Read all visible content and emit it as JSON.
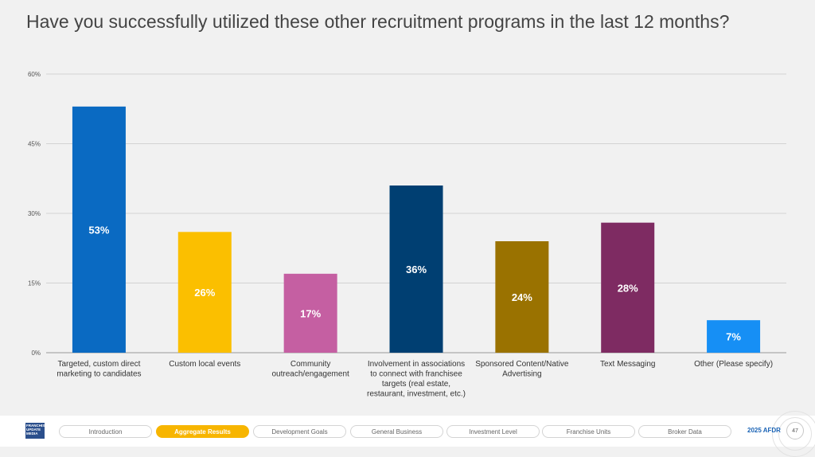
{
  "title": "Have you successfully utilized these other recruitment programs in the last 12 months?",
  "chart_data": {
    "type": "bar",
    "categories": [
      [
        "Targeted, custom direct",
        "marketing to candidates"
      ],
      [
        "Custom local events"
      ],
      [
        "Community",
        "outreach/engagement"
      ],
      [
        "Involvement in associations",
        "to connect with franchisee",
        "targets (real estate,",
        "restaurant, investment, etc.)"
      ],
      [
        "Sponsored Content/Native",
        "Advertising"
      ],
      [
        "Text Messaging"
      ],
      [
        "Other (Please specify)"
      ]
    ],
    "values": [
      53,
      26,
      17,
      36,
      24,
      28,
      7
    ],
    "value_labels": [
      "53%",
      "26%",
      "17%",
      "36%",
      "24%",
      "28%",
      "7%"
    ],
    "colors": [
      "#0a6ac2",
      "#fbbf00",
      "#c55fa2",
      "#003f72",
      "#9a7200",
      "#7e2b62",
      "#168ff5"
    ],
    "yticks": [
      0,
      15,
      30,
      45,
      60
    ],
    "ytick_labels": [
      "0%",
      "15%",
      "30%",
      "45%",
      "60%"
    ],
    "ylim": [
      0,
      60
    ],
    "grid": true,
    "legend": "none"
  },
  "footer": {
    "logo_lines": [
      "FRANCHISE",
      "UPDATE",
      "MEDIA"
    ],
    "tabs": [
      "Introduction",
      "Aggregate Results",
      "Development Goals",
      "General Business",
      "Investment Level",
      "Franchise Units",
      "Broker Data"
    ],
    "active_tab": "Aggregate Results",
    "report_label": "2025 AFDR",
    "page_number": "47"
  }
}
